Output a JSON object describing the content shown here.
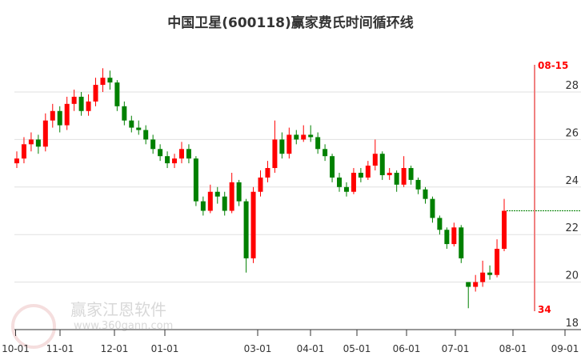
{
  "title": "中国卫星(600118)赢家费氏时间循环线",
  "watermark": {
    "brand": "赢家江恩软件",
    "url": "www.360gann.com",
    "seal": "江恩赢家"
  },
  "colors": {
    "up": "#ff0000",
    "down": "#008000",
    "cycle_line": "#f08080",
    "label": "#ff0000",
    "grid": "#e0e0e0"
  },
  "chart_data": {
    "type": "candlestick",
    "ylim": [
      18,
      29.3
    ],
    "y_ticks": [
      "18",
      "20",
      "22",
      "24",
      "26",
      "28"
    ],
    "x_ticks": [
      "10-01",
      "11-01",
      "12-01",
      "01-01",
      "03-01",
      "04-01",
      "05-01",
      "06-01",
      "07-01",
      "08-01",
      "09-01"
    ],
    "grid": true,
    "candles_ohlc": [
      [
        25.0,
        25.5,
        24.8,
        25.2
      ],
      [
        25.2,
        26.1,
        25.0,
        25.8
      ],
      [
        25.8,
        26.3,
        25.5,
        26.0
      ],
      [
        26.0,
        26.2,
        25.4,
        25.7
      ],
      [
        25.7,
        27.1,
        25.5,
        26.8
      ],
      [
        26.8,
        27.5,
        26.5,
        27.2
      ],
      [
        27.2,
        27.4,
        26.3,
        26.6
      ],
      [
        26.6,
        27.8,
        26.4,
        27.5
      ],
      [
        27.5,
        28.1,
        27.2,
        27.8
      ],
      [
        27.8,
        28.0,
        27.0,
        27.2
      ],
      [
        27.2,
        27.9,
        27.0,
        27.6
      ],
      [
        27.6,
        28.6,
        27.4,
        28.3
      ],
      [
        28.3,
        29.0,
        28.0,
        28.6
      ],
      [
        28.6,
        28.9,
        28.1,
        28.4
      ],
      [
        28.4,
        28.5,
        27.2,
        27.4
      ],
      [
        27.4,
        27.6,
        26.6,
        26.8
      ],
      [
        26.8,
        27.0,
        26.3,
        26.5
      ],
      [
        26.5,
        26.8,
        26.2,
        26.4
      ],
      [
        26.4,
        26.6,
        25.8,
        26.0
      ],
      [
        26.0,
        26.2,
        25.4,
        25.6
      ],
      [
        25.6,
        25.8,
        25.1,
        25.3
      ],
      [
        25.3,
        25.5,
        24.8,
        25.0
      ],
      [
        25.0,
        25.4,
        24.8,
        25.2
      ],
      [
        25.2,
        25.9,
        25.0,
        25.6
      ],
      [
        25.6,
        25.8,
        25.0,
        25.2
      ],
      [
        25.2,
        25.3,
        23.2,
        23.4
      ],
      [
        23.4,
        23.6,
        22.8,
        23.0
      ],
      [
        23.0,
        24.1,
        22.9,
        23.8
      ],
      [
        23.8,
        24.0,
        23.3,
        23.6
      ],
      [
        23.6,
        23.8,
        22.8,
        23.0
      ],
      [
        23.0,
        24.6,
        22.9,
        24.2
      ],
      [
        24.2,
        24.3,
        23.2,
        23.4
      ],
      [
        23.4,
        23.5,
        20.4,
        21.0
      ],
      [
        21.0,
        24.0,
        20.8,
        23.8
      ],
      [
        23.8,
        24.7,
        23.6,
        24.4
      ],
      [
        24.4,
        25.1,
        24.2,
        24.8
      ],
      [
        24.8,
        26.8,
        24.6,
        26.0
      ],
      [
        26.0,
        26.3,
        25.2,
        25.4
      ],
      [
        25.4,
        26.5,
        25.2,
        26.2
      ],
      [
        26.2,
        26.4,
        25.8,
        26.0
      ],
      [
        26.0,
        26.6,
        25.9,
        26.2
      ],
      [
        26.2,
        26.6,
        25.9,
        26.1
      ],
      [
        26.1,
        26.3,
        25.4,
        25.6
      ],
      [
        25.6,
        25.8,
        25.1,
        25.3
      ],
      [
        25.3,
        25.4,
        24.2,
        24.4
      ],
      [
        24.4,
        24.6,
        23.8,
        24.0
      ],
      [
        24.0,
        24.2,
        23.6,
        23.8
      ],
      [
        23.8,
        24.8,
        23.7,
        24.6
      ],
      [
        24.6,
        24.8,
        24.2,
        24.4
      ],
      [
        24.4,
        25.1,
        24.3,
        24.9
      ],
      [
        24.9,
        26.0,
        24.7,
        25.4
      ],
      [
        25.4,
        25.5,
        24.3,
        24.5
      ],
      [
        24.5,
        24.8,
        24.3,
        24.6
      ],
      [
        24.6,
        24.7,
        23.8,
        24.1
      ],
      [
        24.1,
        25.3,
        24.0,
        24.8
      ],
      [
        24.8,
        24.9,
        24.1,
        24.3
      ],
      [
        24.3,
        24.4,
        23.7,
        23.9
      ],
      [
        23.9,
        24.0,
        23.3,
        23.5
      ],
      [
        23.5,
        23.6,
        22.5,
        22.7
      ],
      [
        22.7,
        22.8,
        22.0,
        22.2
      ],
      [
        22.2,
        22.3,
        21.4,
        21.6
      ],
      [
        21.6,
        22.5,
        21.5,
        22.3
      ],
      [
        22.3,
        22.4,
        20.8,
        21.0
      ],
      [
        20.0,
        20.0,
        18.9,
        19.8
      ],
      [
        19.8,
        20.3,
        19.6,
        20.0
      ],
      [
        20.0,
        20.9,
        19.8,
        20.4
      ],
      [
        20.4,
        20.7,
        20.1,
        20.3
      ],
      [
        20.3,
        21.8,
        20.2,
        21.4
      ],
      [
        21.4,
        23.5,
        21.3,
        23.0
      ]
    ],
    "last_close_line": 23.0,
    "annotations": {
      "cycle_date": "08-15",
      "cycle_count": "34"
    }
  }
}
